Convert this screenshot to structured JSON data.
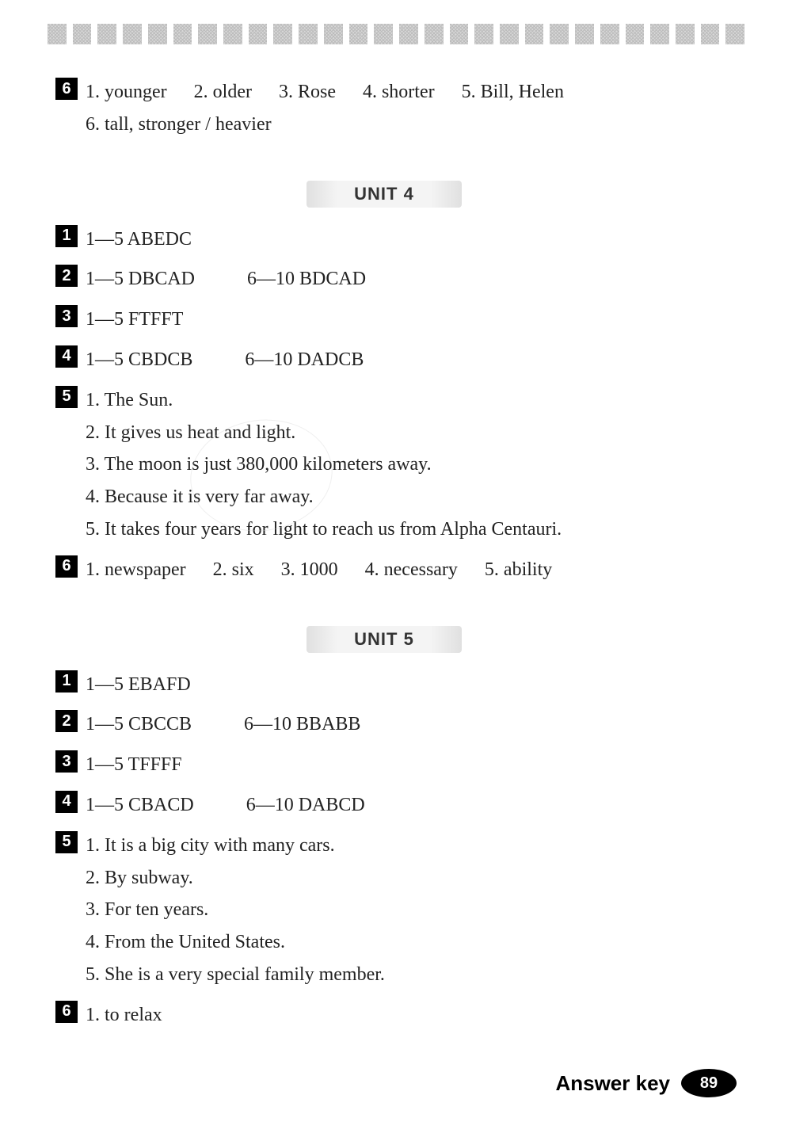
{
  "topSection": {
    "badge": "6",
    "line1_items": [
      "1. younger",
      "2. older",
      "3. Rose",
      "4. shorter",
      "5. Bill, Helen"
    ],
    "line2": "6. tall, stronger / heavier"
  },
  "unit4": {
    "heading": "UNIT 4",
    "rows": [
      {
        "badge": "1",
        "col1": "1—5 ABEDC",
        "col2": ""
      },
      {
        "badge": "2",
        "col1": "1—5 DBCAD",
        "col2": "6—10 BDCAD"
      },
      {
        "badge": "3",
        "col1": "1—5 FTFFT",
        "col2": ""
      },
      {
        "badge": "4",
        "col1": "1—5 CBDCB",
        "col2": "6—10 DADCB"
      }
    ],
    "q5": {
      "badge": "5",
      "lines": [
        "1. The Sun.",
        "2. It gives us heat and light.",
        "3. The moon is just 380,000 kilometers away.",
        "4. Because it is very far away.",
        "5. It takes four years for light to reach us from Alpha Centauri."
      ]
    },
    "q6": {
      "badge": "6",
      "items": [
        "1. newspaper",
        "2. six",
        "3. 1000",
        "4. necessary",
        "5. ability"
      ]
    }
  },
  "unit5": {
    "heading": "UNIT 5",
    "rows": [
      {
        "badge": "1",
        "col1": "1—5 EBAFD",
        "col2": ""
      },
      {
        "badge": "2",
        "col1": "1—5 CBCCB",
        "col2": "6—10 BBABB"
      },
      {
        "badge": "3",
        "col1": "1—5 TFFFF",
        "col2": ""
      },
      {
        "badge": "4",
        "col1": "1—5 CBACD",
        "col2": "6—10 DABCD"
      }
    ],
    "q5": {
      "badge": "5",
      "lines": [
        "1. It is a big city with many cars.",
        "2. By subway.",
        "3. For ten years.",
        "4. From the United States.",
        "5. She is a very special family member."
      ]
    },
    "q6": {
      "badge": "6",
      "items": [
        "1. to relax"
      ]
    }
  },
  "footer": {
    "label": "Answer key",
    "page": "89"
  }
}
